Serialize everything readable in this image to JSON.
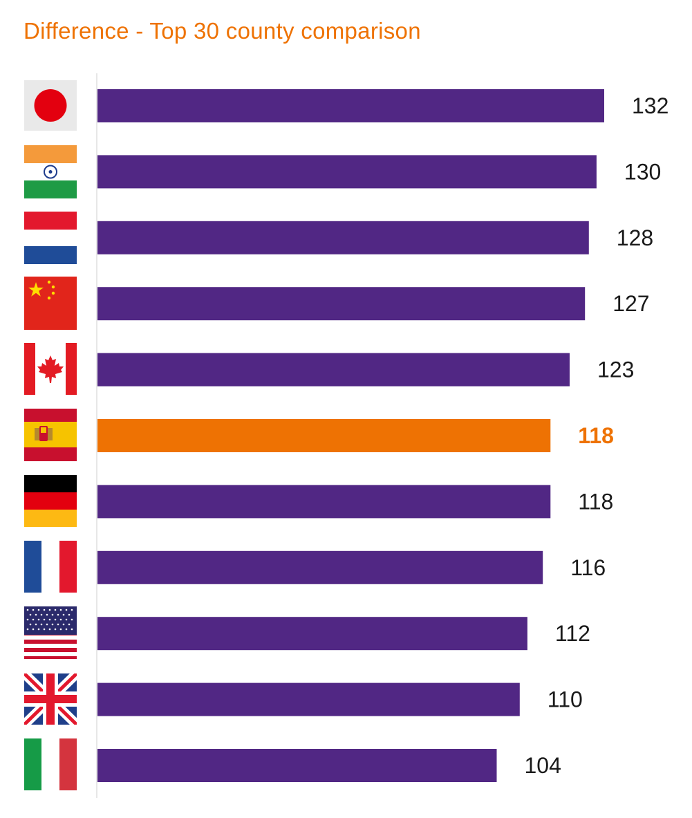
{
  "title": "Difference - Top 30 county comparison",
  "colors": {
    "bar": "#512784",
    "highlight": "#ee7203",
    "text": "#1a1a1a",
    "axis": "#cfcfcf"
  },
  "chart_data": {
    "type": "bar",
    "orientation": "horizontal",
    "title": "Difference - Top 30 county comparison",
    "categories": [
      "japan-flag",
      "india-flag",
      "netherlands-flag",
      "china-flag",
      "canada-flag",
      "spain-flag",
      "germany-flag",
      "france-flag",
      "usa-flag",
      "uk-flag",
      "italy-flag"
    ],
    "values": [
      132,
      130,
      128,
      127,
      123,
      118,
      118,
      116,
      112,
      110,
      104
    ],
    "value_labels": [
      "132",
      "130",
      "128",
      "127",
      "123",
      "118",
      "118",
      "116",
      "112",
      "110",
      "104"
    ],
    "highlight_index": 5,
    "xlim": [
      0,
      132
    ],
    "grid": false,
    "legend": "none"
  }
}
